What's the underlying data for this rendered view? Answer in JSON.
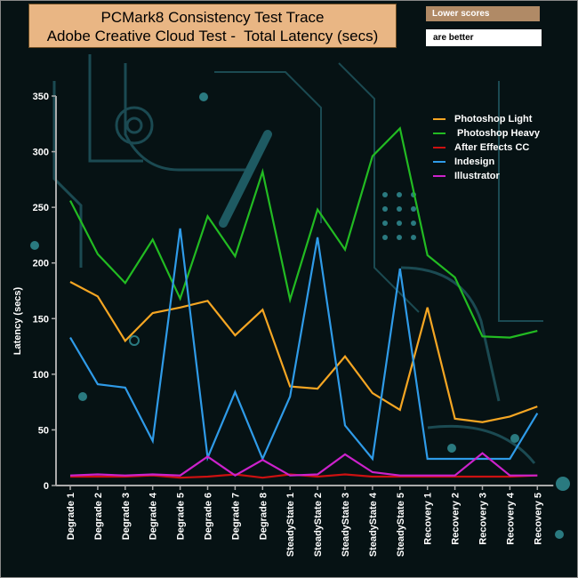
{
  "notes": {
    "line1": "Lower scores",
    "line2": "are better"
  },
  "chart_data": {
    "type": "line",
    "title": [
      "PCMark8 Consistency Test Trace",
      "Adobe Creative Cloud Test -  Total Latency (secs)"
    ],
    "xlabel": "",
    "ylabel": "Latency (secs)",
    "ylim": [
      0,
      350
    ],
    "yticks": [
      0,
      50,
      100,
      150,
      200,
      250,
      300,
      350
    ],
    "grid": false,
    "legend_position": "top-right",
    "categories": [
      "Degrade 1",
      "Degrade 2",
      "Degrade 3",
      "Degrade 4",
      "Degrade 5",
      "Degrade 6",
      "Degrade 7",
      "Degrade 8",
      "SteadyState 1",
      "SteadyState 2",
      "SteadyState 3",
      "SteadyState 4",
      "SteadyState 5",
      "Recovery 1",
      "Recovery 2",
      "Recovery 3",
      "Recovery 4",
      "Recovery 5"
    ],
    "series": [
      {
        "name": "Photoshop Light",
        "color": "#f5a623",
        "values": [
          183,
          170,
          130,
          155,
          160,
          166,
          135,
          158,
          89,
          87,
          116,
          83,
          68,
          160,
          60,
          57,
          62,
          71
        ]
      },
      {
        "name": " Photoshop Heavy",
        "color": "#22bb22",
        "values": [
          256,
          208,
          182,
          221,
          168,
          242,
          206,
          282,
          167,
          248,
          212,
          296,
          321,
          207,
          187,
          134,
          133,
          139
        ]
      },
      {
        "name": "After Effects CC",
        "color": "#cc1111",
        "values": [
          8,
          8,
          8,
          9,
          7,
          8,
          10,
          7,
          10,
          8,
          10,
          8,
          8,
          8,
          8,
          8,
          8,
          9
        ]
      },
      {
        "name": "Indesign",
        "color": "#2f9be8",
        "values": [
          133,
          91,
          88,
          40,
          231,
          25,
          84,
          24,
          80,
          223,
          54,
          24,
          195,
          24,
          24,
          24,
          24,
          65
        ]
      },
      {
        "name": "Illustrator",
        "color": "#cc22cc",
        "values": [
          9,
          10,
          9,
          10,
          9,
          26,
          9,
          23,
          9,
          10,
          28,
          12,
          9,
          9,
          9,
          29,
          9,
          9
        ]
      }
    ]
  }
}
